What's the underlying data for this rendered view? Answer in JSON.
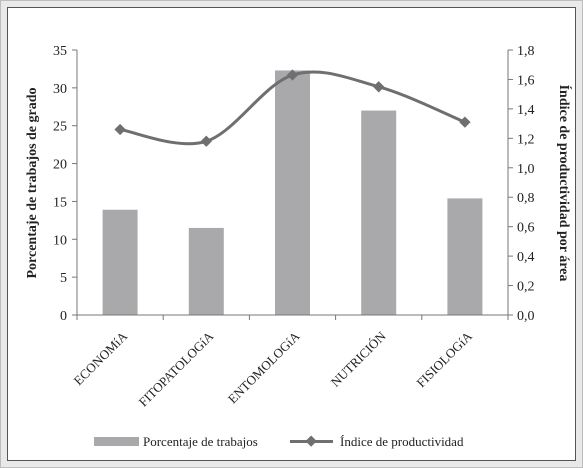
{
  "chart_data": {
    "type": "bar+line",
    "categories": [
      "ECONOMíA",
      "FITOPATOLOGíA",
      "ENTOMOLOGíA",
      "NUTRICIÓN",
      "FISIOLOGíA"
    ],
    "series": [
      {
        "name": "Porcentaje de trabajos",
        "type": "bar",
        "axis": "left",
        "values": [
          13.9,
          11.5,
          32.3,
          27.0,
          15.4
        ],
        "color": "#a9a9ab"
      },
      {
        "name": "Índice de productividad",
        "type": "line",
        "axis": "right",
        "values": [
          1.26,
          1.18,
          1.63,
          1.55,
          1.31
        ],
        "color": "#6f6f71",
        "marker": "diamond"
      }
    ],
    "ylabel": "Porcentaje de  trabajos de grado",
    "y2label": "Índice de productividad por área",
    "ylim": [
      0,
      35
    ],
    "y2lim": [
      0,
      1.8
    ],
    "yticks": [
      "0",
      "5",
      "10",
      "15",
      "20",
      "25",
      "30",
      "35"
    ],
    "y2ticks": [
      "0,0",
      "0,2",
      "0,4",
      "0,6",
      "0,8",
      "1,0",
      "1,2",
      "1,4",
      "1,6",
      "1,8"
    ],
    "grid": false,
    "legend": "bottom"
  }
}
